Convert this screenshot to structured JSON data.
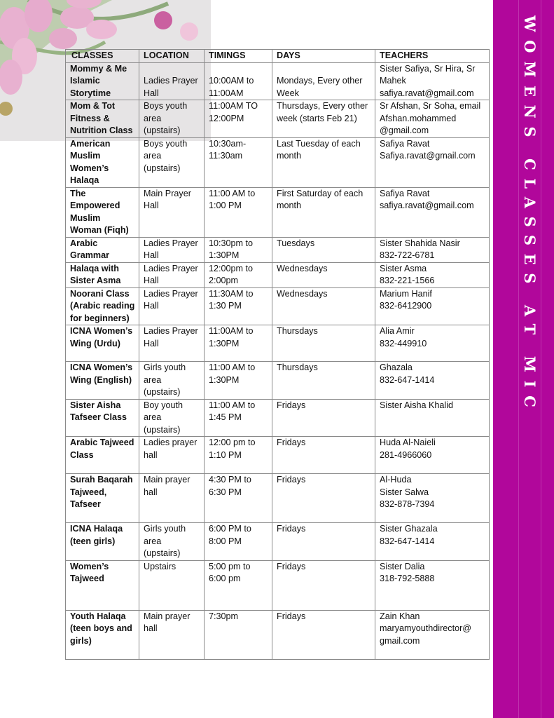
{
  "sidebar": {
    "title": "WOMENS CLASSES AT MIC",
    "color": "#b1079b"
  },
  "table": {
    "headers": [
      "CLASSES",
      "LOCATION",
      "TIMINGS",
      "DAYS",
      "TEACHERS"
    ],
    "rows": [
      {
        "cells": [
          [
            "Mommy & Me",
            "Islamic",
            "Storytime"
          ],
          [
            "Ladies Prayer",
            "Hall"
          ],
          [
            "10:00AM to",
            "11:00AM"
          ],
          [
            "Mondays, Every other",
            "Week"
          ],
          [
            "Sister Safiya, Sr Hira, Sr",
            "Mahek",
            "safiya.ravat@gmail.com"
          ]
        ]
      },
      {
        "cells": [
          [
            "Mom & Tot",
            "Fitness &",
            "Nutrition Class"
          ],
          [
            "Boys youth",
            "area",
            "(upstairs)"
          ],
          [
            "11:00AM TO",
            "12:00PM"
          ],
          [
            "Thursdays, Every other",
            "week (starts Feb 21)"
          ],
          [
            "Sr Afshan, Sr Soha, email",
            "Afshan.mohammed",
            "@gmail.com"
          ]
        ]
      },
      {
        "cells": [
          [
            "American",
            "Muslim",
            "Women’s",
            "Halaqa"
          ],
          [
            "Boys youth",
            "area",
            "(upstairs)"
          ],
          [
            "10:30am-",
            "11:30am"
          ],
          [
            "Last  Tuesday of each",
            "month"
          ],
          [
            "Safiya Ravat",
            "Safiya.ravat@gmail.com"
          ]
        ]
      },
      {
        "cells": [
          [
            "The",
            "Empowered",
            "Muslim",
            "Woman (Fiqh)"
          ],
          [
            "Main Prayer",
            "Hall"
          ],
          [
            "11:00 AM to",
            "1:00 PM"
          ],
          [
            "First Saturday of each",
            "month"
          ],
          [
            "Safiya Ravat",
            "safiya.ravat@gmail.com"
          ]
        ]
      },
      {
        "cells": [
          [
            "Arabic",
            "Grammar"
          ],
          [
            "Ladies Prayer",
            "Hall"
          ],
          [
            "10:30pm to",
            "1:30PM"
          ],
          [
            "Tuesdays"
          ],
          [
            "Sister Shahida Nasir",
            "832-722-6781"
          ]
        ]
      },
      {
        "cells": [
          [
            "Halaqa with",
            "Sister Asma"
          ],
          [
            "Ladies Prayer",
            "Hall"
          ],
          [
            "12:00pm to",
            "2:00pm"
          ],
          [
            "Wednesdays"
          ],
          [
            "Sister Asma",
            "832-221-1566"
          ]
        ]
      },
      {
        "cells": [
          [
            "Noorani Class",
            "(Arabic reading",
            "for beginners)"
          ],
          [
            "Ladies Prayer",
            "Hall"
          ],
          [
            "11:30AM to",
            "1:30 PM"
          ],
          [
            "Wednesdays"
          ],
          [
            "Marium Hanif",
            "832-6412900"
          ]
        ]
      },
      {
        "cells": [
          [
            "ICNA Women’s",
            "Wing (Urdu)"
          ],
          [
            "Ladies Prayer",
            "Hall"
          ],
          [
            "11:00AM  to",
            "1:30PM"
          ],
          [
            "Thursdays"
          ],
          [
            "Alia Amir",
            "832-449910"
          ]
        ]
      },
      {
        "cells": [
          [
            "ICNA Women’s",
            "Wing (English)"
          ],
          [
            "Girls youth",
            "area",
            "(upstairs)"
          ],
          [
            "11:00 AM to",
            "1:30PM"
          ],
          [
            "Thursdays"
          ],
          [
            "Ghazala",
            "832-647-1414"
          ]
        ]
      },
      {
        "cells": [
          [
            "Sister Aisha",
            "Tafseer Class"
          ],
          [
            "Boy youth",
            "area",
            "(upstairs)"
          ],
          [
            "11:00 AM to",
            "1:45 PM"
          ],
          [
            "Fridays"
          ],
          [
            "Sister Aisha Khalid"
          ]
        ]
      },
      {
        "cells": [
          [
            "Arabic Tajweed",
            "Class"
          ],
          [
            "Ladies prayer",
            "hall"
          ],
          [
            "12:00 pm to",
            "1:10 PM"
          ],
          [
            "Fridays"
          ],
          [
            "Huda Al-Naieli",
            "281-4966060"
          ]
        ]
      },
      {
        "cells": [
          [
            "Surah Baqarah",
            "Tajweed,",
            "Tafseer"
          ],
          [
            "Main prayer",
            "hall"
          ],
          [
            "4:30 PM to",
            "6:30 PM"
          ],
          [
            "Fridays"
          ],
          [
            "Al-Huda",
            "Sister Salwa",
            "832-878-7394"
          ]
        ]
      },
      {
        "cells": [
          [
            "ICNA Halaqa",
            "(teen girls)"
          ],
          [
            "Girls youth",
            "area",
            "(upstairs)"
          ],
          [
            "6:00 PM to",
            "8:00 PM"
          ],
          [
            "Fridays"
          ],
          [
            "Sister Ghazala",
            "832-647-1414"
          ]
        ]
      },
      {
        "cells": [
          [
            "Women’s",
            "Tajweed"
          ],
          [
            "Upstairs"
          ],
          [
            "5:00 pm to",
            "6:00 pm"
          ],
          [
            "Fridays"
          ],
          [
            "Sister Dalia",
            "318-792-5888"
          ]
        ]
      },
      {
        "cells": [
          [
            "Youth Halaqa",
            "(teen boys and",
            "girls)"
          ],
          [
            "Main prayer",
            "hall"
          ],
          [
            "7:30pm"
          ],
          [
            "Fridays"
          ],
          [
            "Zain Khan",
            "maryamyouthdirector@",
            "gmail.com"
          ]
        ]
      }
    ]
  }
}
